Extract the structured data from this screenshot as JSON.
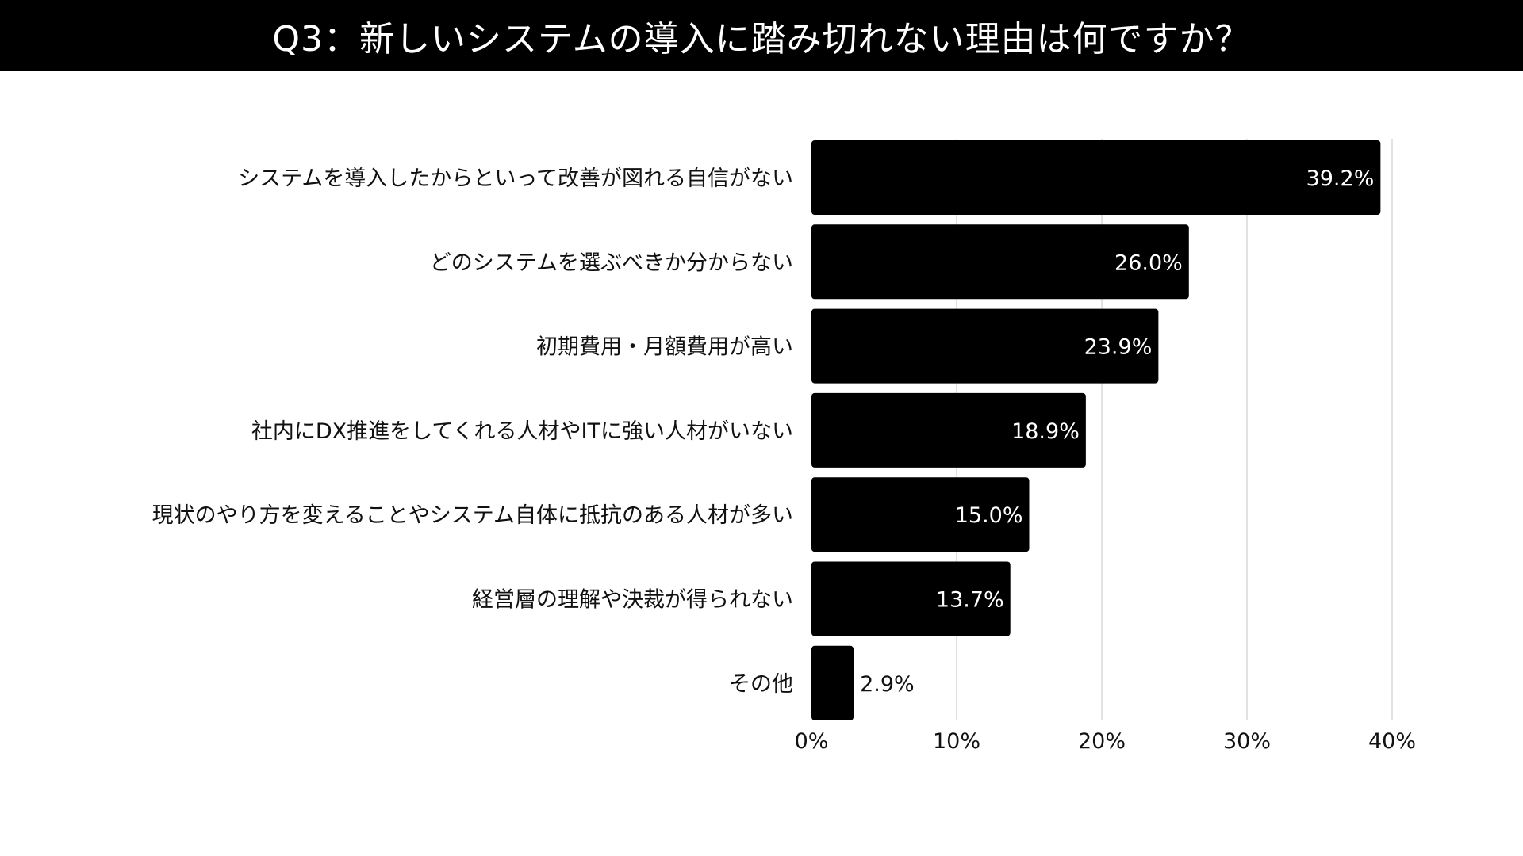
{
  "header": {
    "title": "Q3：新しいシステムの導入に踏み切れない理由は何ですか？"
  },
  "colors": {
    "bar": "#000000",
    "header_bg": "#000000",
    "grid": "#d9d9d9"
  },
  "chart_data": {
    "type": "bar",
    "orientation": "horizontal",
    "title": "Q3：新しいシステムの導入に踏み切れない理由は何ですか？",
    "categories": [
      "システムを導入したからといって改善が図れる自信がない",
      "どのシステムを選ぶべきか分からない",
      "初期費用・月額費用が高い",
      "社内にDX推進をしてくれる人材やITに強い人材がいない",
      "現状のやり方を変えることやシステム自体に抵抗のある人材が多い",
      "経営層の理解や決裁が得られない",
      "その他"
    ],
    "values": [
      39.2,
      26.0,
      23.9,
      18.9,
      15.0,
      13.7,
      2.9
    ],
    "value_labels": [
      "39.2%",
      "26.0%",
      "23.9%",
      "18.9%",
      "15.0%",
      "13.7%",
      "2.9%"
    ],
    "xlim": [
      0,
      40
    ],
    "xticks": [
      0,
      10,
      20,
      30,
      40
    ],
    "xtick_labels": [
      "0%",
      "10%",
      "20%",
      "30%",
      "40%"
    ],
    "grid": true,
    "legend": "none"
  }
}
